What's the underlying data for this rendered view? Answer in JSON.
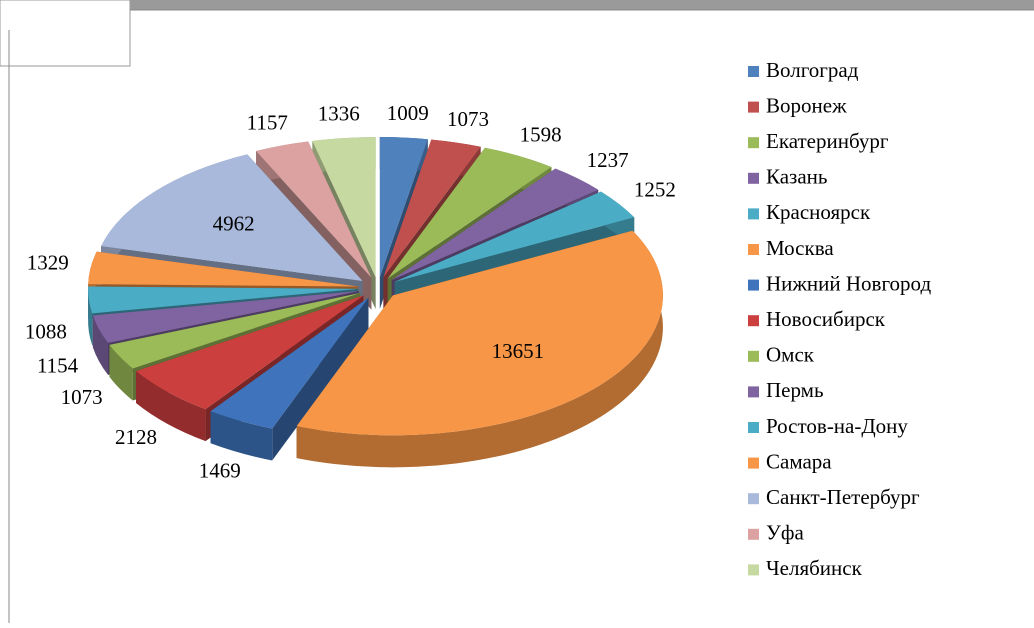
{
  "chart_data": {
    "type": "pie3d",
    "categories": [
      "Волгоград",
      "Воронеж",
      "Екатеринбург",
      "Казань",
      "Красноярск",
      "Москва",
      "Нижний Новгород",
      "Новосибирск",
      "Омск",
      "Пермь",
      "Ростов-на-Дону",
      "Самара",
      "Санкт-Петербург",
      "Уфа",
      "Челябинск"
    ],
    "values": [
      1009,
      1073,
      1598,
      1237,
      1252,
      13651,
      1469,
      2128,
      1073,
      1154,
      1088,
      1329,
      4962,
      1157,
      1336
    ],
    "colors": [
      "#4f81bd",
      "#c0504d",
      "#9bbb59",
      "#8064a2",
      "#4bacc6",
      "#f79646",
      "#3f74bd",
      "#cc3f3f",
      "#9bbb59",
      "#8064a2",
      "#4bacc6",
      "#f79646",
      "#a9b9db",
      "#dba2a1",
      "#c6d9a0"
    ],
    "legend": "right"
  }
}
